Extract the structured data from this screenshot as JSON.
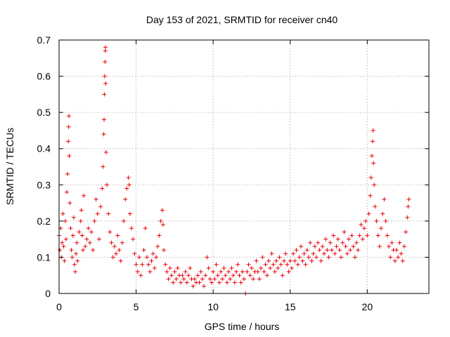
{
  "chart_data": {
    "type": "scatter",
    "title": "Day 153 of 2021, SRMTID for receiver cn40",
    "xlabel": "GPS time / hours",
    "ylabel": "SRMTID / TECUs",
    "xlim": [
      0,
      24
    ],
    "ylim": [
      0,
      0.7
    ],
    "xticks": [
      0,
      5,
      10,
      15,
      20
    ],
    "xtick_labels": [
      "0",
      "5",
      "10",
      "15",
      "20"
    ],
    "yticks": [
      0,
      0.1,
      0.2,
      0.3,
      0.4,
      0.5,
      0.6,
      0.7
    ],
    "ytick_labels": [
      "0",
      "0.1",
      "0.2",
      "0.3",
      "0.4",
      "0.5",
      "0.6",
      "0.7"
    ],
    "grid": true,
    "marker": "+",
    "color": "#e8000b",
    "series": [
      {
        "name": "SRMTID",
        "points": [
          [
            0.0,
            0.16
          ],
          [
            0.05,
            0.12
          ],
          [
            0.1,
            0.18
          ],
          [
            0.15,
            0.1
          ],
          [
            0.2,
            0.14
          ],
          [
            0.25,
            0.22
          ],
          [
            0.3,
            0.13
          ],
          [
            0.35,
            0.09
          ],
          [
            0.4,
            0.2
          ],
          [
            0.45,
            0.15
          ],
          [
            0.5,
            0.28
          ],
          [
            0.55,
            0.33
          ],
          [
            0.6,
            0.42
          ],
          [
            0.62,
            0.46
          ],
          [
            0.64,
            0.49
          ],
          [
            0.66,
            0.38
          ],
          [
            0.7,
            0.25
          ],
          [
            0.75,
            0.18
          ],
          [
            0.8,
            0.12
          ],
          [
            0.85,
            0.1
          ],
          [
            0.9,
            0.16
          ],
          [
            0.95,
            0.21
          ],
          [
            1.0,
            0.08
          ],
          [
            1.05,
            0.06
          ],
          [
            1.1,
            0.11
          ],
          [
            1.15,
            0.14
          ],
          [
            1.2,
            0.09
          ],
          [
            1.3,
            0.17
          ],
          [
            1.4,
            0.2
          ],
          [
            1.45,
            0.23
          ],
          [
            1.5,
            0.16
          ],
          [
            1.55,
            0.12
          ],
          [
            1.6,
            0.27
          ],
          [
            1.7,
            0.13
          ],
          [
            1.8,
            0.15
          ],
          [
            1.9,
            0.18
          ],
          [
            2.0,
            0.14
          ],
          [
            2.1,
            0.17
          ],
          [
            2.2,
            0.12
          ],
          [
            2.3,
            0.2
          ],
          [
            2.4,
            0.26
          ],
          [
            2.5,
            0.22
          ],
          [
            2.6,
            0.15
          ],
          [
            2.7,
            0.24
          ],
          [
            2.8,
            0.29
          ],
          [
            2.85,
            0.35
          ],
          [
            2.9,
            0.44
          ],
          [
            2.92,
            0.48
          ],
          [
            2.94,
            0.55
          ],
          [
            2.96,
            0.6
          ],
          [
            2.98,
            0.64
          ],
          [
            3.0,
            0.67
          ],
          [
            3.01,
            0.68
          ],
          [
            3.02,
            0.58
          ],
          [
            3.05,
            0.39
          ],
          [
            3.1,
            0.3
          ],
          [
            3.2,
            0.22
          ],
          [
            3.3,
            0.17
          ],
          [
            3.4,
            0.14
          ],
          [
            3.5,
            0.1
          ],
          [
            3.6,
            0.13
          ],
          [
            3.7,
            0.11
          ],
          [
            3.8,
            0.16
          ],
          [
            3.9,
            0.12
          ],
          [
            4.0,
            0.09
          ],
          [
            4.1,
            0.14
          ],
          [
            4.2,
            0.2
          ],
          [
            4.3,
            0.26
          ],
          [
            4.4,
            0.29
          ],
          [
            4.5,
            0.32
          ],
          [
            4.55,
            0.3
          ],
          [
            4.6,
            0.22
          ],
          [
            4.7,
            0.18
          ],
          [
            4.8,
            0.15
          ],
          [
            4.9,
            0.11
          ],
          [
            5.0,
            0.08
          ],
          [
            5.1,
            0.06
          ],
          [
            5.2,
            0.1
          ],
          [
            5.3,
            0.05
          ],
          [
            5.4,
            0.08
          ],
          [
            5.5,
            0.12
          ],
          [
            5.6,
            0.18
          ],
          [
            5.7,
            0.1
          ],
          [
            5.8,
            0.08
          ],
          [
            5.9,
            0.06
          ],
          [
            6.0,
            0.09
          ],
          [
            6.1,
            0.11
          ],
          [
            6.2,
            0.07
          ],
          [
            6.3,
            0.1
          ],
          [
            6.4,
            0.13
          ],
          [
            6.5,
            0.16
          ],
          [
            6.6,
            0.2
          ],
          [
            6.7,
            0.23
          ],
          [
            6.75,
            0.19
          ],
          [
            6.8,
            0.12
          ],
          [
            6.9,
            0.08
          ],
          [
            7.0,
            0.06
          ],
          [
            7.1,
            0.04
          ],
          [
            7.2,
            0.07
          ],
          [
            7.3,
            0.05
          ],
          [
            7.4,
            0.03
          ],
          [
            7.5,
            0.06
          ],
          [
            7.6,
            0.04
          ],
          [
            7.7,
            0.07
          ],
          [
            7.8,
            0.05
          ],
          [
            7.9,
            0.03
          ],
          [
            8.0,
            0.05
          ],
          [
            8.1,
            0.04
          ],
          [
            8.2,
            0.06
          ],
          [
            8.3,
            0.03
          ],
          [
            8.4,
            0.05
          ],
          [
            8.5,
            0.07
          ],
          [
            8.6,
            0.04
          ],
          [
            8.7,
            0.02
          ],
          [
            8.8,
            0.04
          ],
          [
            8.9,
            0.03
          ],
          [
            9.0,
            0.05
          ],
          [
            9.1,
            0.03
          ],
          [
            9.2,
            0.06
          ],
          [
            9.3,
            0.04
          ],
          [
            9.4,
            0.02
          ],
          [
            9.5,
            0.05
          ],
          [
            9.6,
            0.1
          ],
          [
            9.7,
            0.07
          ],
          [
            9.8,
            0.04
          ],
          [
            9.9,
            0.03
          ],
          [
            10.0,
            0.06
          ],
          [
            10.1,
            0.04
          ],
          [
            10.2,
            0.08
          ],
          [
            10.3,
            0.05
          ],
          [
            10.4,
            0.03
          ],
          [
            10.5,
            0.06
          ],
          [
            10.6,
            0.04
          ],
          [
            10.7,
            0.07
          ],
          [
            10.8,
            0.05
          ],
          [
            10.9,
            0.03
          ],
          [
            11.0,
            0.06
          ],
          [
            11.1,
            0.04
          ],
          [
            11.2,
            0.07
          ],
          [
            11.3,
            0.05
          ],
          [
            11.4,
            0.03
          ],
          [
            11.5,
            0.06
          ],
          [
            11.6,
            0.08
          ],
          [
            11.7,
            0.05
          ],
          [
            11.8,
            0.03
          ],
          [
            11.9,
            0.06
          ],
          [
            12.0,
            0.04
          ],
          [
            12.1,
            0.0
          ],
          [
            12.2,
            0.06
          ],
          [
            12.3,
            0.08
          ],
          [
            12.4,
            0.05
          ],
          [
            12.5,
            0.07
          ],
          [
            12.6,
            0.04
          ],
          [
            12.7,
            0.06
          ],
          [
            12.8,
            0.09
          ],
          [
            12.9,
            0.06
          ],
          [
            13.0,
            0.04
          ],
          [
            13.1,
            0.07
          ],
          [
            13.2,
            0.1
          ],
          [
            13.3,
            0.06
          ],
          [
            13.4,
            0.08
          ],
          [
            13.5,
            0.05
          ],
          [
            13.6,
            0.09
          ],
          [
            13.7,
            0.07
          ],
          [
            13.8,
            0.11
          ],
          [
            13.9,
            0.08
          ],
          [
            14.0,
            0.06
          ],
          [
            14.1,
            0.09
          ],
          [
            14.2,
            0.07
          ],
          [
            14.3,
            0.1
          ],
          [
            14.4,
            0.08
          ],
          [
            14.5,
            0.05
          ],
          [
            14.6,
            0.09
          ],
          [
            14.7,
            0.11
          ],
          [
            14.8,
            0.08
          ],
          [
            14.9,
            0.06
          ],
          [
            15.0,
            0.09
          ],
          [
            15.1,
            0.07
          ],
          [
            15.2,
            0.11
          ],
          [
            15.3,
            0.09
          ],
          [
            15.4,
            0.12
          ],
          [
            15.5,
            0.08
          ],
          [
            15.6,
            0.1
          ],
          [
            15.7,
            0.13
          ],
          [
            15.8,
            0.09
          ],
          [
            15.9,
            0.11
          ],
          [
            16.0,
            0.08
          ],
          [
            16.1,
            0.12
          ],
          [
            16.2,
            0.1
          ],
          [
            16.3,
            0.14
          ],
          [
            16.4,
            0.09
          ],
          [
            16.5,
            0.11
          ],
          [
            16.6,
            0.13
          ],
          [
            16.7,
            0.1
          ],
          [
            16.8,
            0.14
          ],
          [
            16.9,
            0.12
          ],
          [
            17.0,
            0.09
          ],
          [
            17.1,
            0.13
          ],
          [
            17.2,
            0.11
          ],
          [
            17.3,
            0.15
          ],
          [
            17.4,
            0.12
          ],
          [
            17.5,
            0.1
          ],
          [
            17.6,
            0.14
          ],
          [
            17.7,
            0.12
          ],
          [
            17.8,
            0.16
          ],
          [
            17.9,
            0.11
          ],
          [
            18.0,
            0.13
          ],
          [
            18.1,
            0.15
          ],
          [
            18.2,
            0.12
          ],
          [
            18.3,
            0.1
          ],
          [
            18.4,
            0.14
          ],
          [
            18.5,
            0.17
          ],
          [
            18.6,
            0.13
          ],
          [
            18.7,
            0.11
          ],
          [
            18.8,
            0.15
          ],
          [
            18.9,
            0.12
          ],
          [
            19.0,
            0.16
          ],
          [
            19.1,
            0.13
          ],
          [
            19.2,
            0.1
          ],
          [
            19.3,
            0.14
          ],
          [
            19.4,
            0.12
          ],
          [
            19.5,
            0.16
          ],
          [
            19.6,
            0.19
          ],
          [
            19.7,
            0.15
          ],
          [
            19.8,
            0.18
          ],
          [
            19.9,
            0.2
          ],
          [
            20.0,
            0.16
          ],
          [
            20.1,
            0.22
          ],
          [
            20.2,
            0.27
          ],
          [
            20.25,
            0.32
          ],
          [
            20.3,
            0.38
          ],
          [
            20.35,
            0.42
          ],
          [
            20.38,
            0.45
          ],
          [
            20.4,
            0.36
          ],
          [
            20.45,
            0.3
          ],
          [
            20.5,
            0.24
          ],
          [
            20.6,
            0.2
          ],
          [
            20.7,
            0.16
          ],
          [
            20.8,
            0.13
          ],
          [
            20.9,
            0.18
          ],
          [
            21.0,
            0.22
          ],
          [
            21.1,
            0.26
          ],
          [
            21.2,
            0.2
          ],
          [
            21.3,
            0.16
          ],
          [
            21.4,
            0.13
          ],
          [
            21.5,
            0.1
          ],
          [
            21.6,
            0.14
          ],
          [
            21.7,
            0.12
          ],
          [
            21.8,
            0.09
          ],
          [
            21.9,
            0.12
          ],
          [
            22.0,
            0.1
          ],
          [
            22.1,
            0.14
          ],
          [
            22.2,
            0.11
          ],
          [
            22.3,
            0.09
          ],
          [
            22.4,
            0.13
          ],
          [
            22.5,
            0.17
          ],
          [
            22.6,
            0.21
          ],
          [
            22.65,
            0.24
          ],
          [
            22.7,
            0.26
          ]
        ]
      }
    ]
  }
}
